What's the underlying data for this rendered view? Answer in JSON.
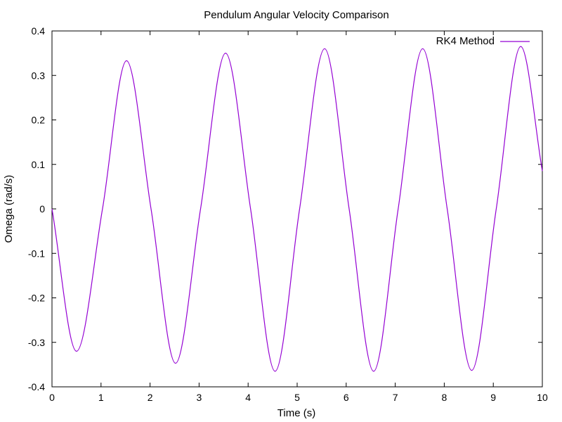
{
  "chart_data": {
    "type": "line",
    "title": "Pendulum Angular Velocity Comparison",
    "xlabel": "Time (s)",
    "ylabel": "Omega (rad/s)",
    "xlim": [
      0,
      10
    ],
    "ylim": [
      -0.4,
      0.4
    ],
    "xticks": [
      0,
      1,
      2,
      3,
      4,
      5,
      6,
      7,
      8,
      9,
      10
    ],
    "xtick_labels": [
      "0",
      "1",
      "2",
      "3",
      "4",
      "5",
      "6",
      "7",
      "8",
      "9",
      "10"
    ],
    "yticks": [
      -0.4,
      -0.3,
      -0.2,
      -0.1,
      0,
      0.1,
      0.2,
      0.3,
      0.4
    ],
    "ytick_labels": [
      "-0.4",
      "-0.3",
      "-0.2",
      "-0.1",
      "0",
      "0.1",
      "0.2",
      "0.3",
      "0.4"
    ],
    "grid": false,
    "legend_position": "top-right",
    "series": [
      {
        "name": "RK4 Method",
        "color": "#9400d3",
        "x": [
          0,
          0.5,
          1.03,
          1.52,
          2.02,
          2.52,
          3.03,
          3.54,
          4.05,
          4.55,
          5.05,
          5.56,
          6.06,
          6.56,
          7.06,
          7.56,
          8.06,
          8.56,
          9.06,
          9.56,
          10
        ],
        "y": [
          0,
          -0.32,
          0,
          0.333,
          0,
          -0.347,
          0,
          0.35,
          0,
          -0.365,
          0,
          0.36,
          0,
          -0.365,
          0,
          0.36,
          0,
          -0.363,
          0,
          0.365,
          0.085
        ]
      }
    ]
  }
}
